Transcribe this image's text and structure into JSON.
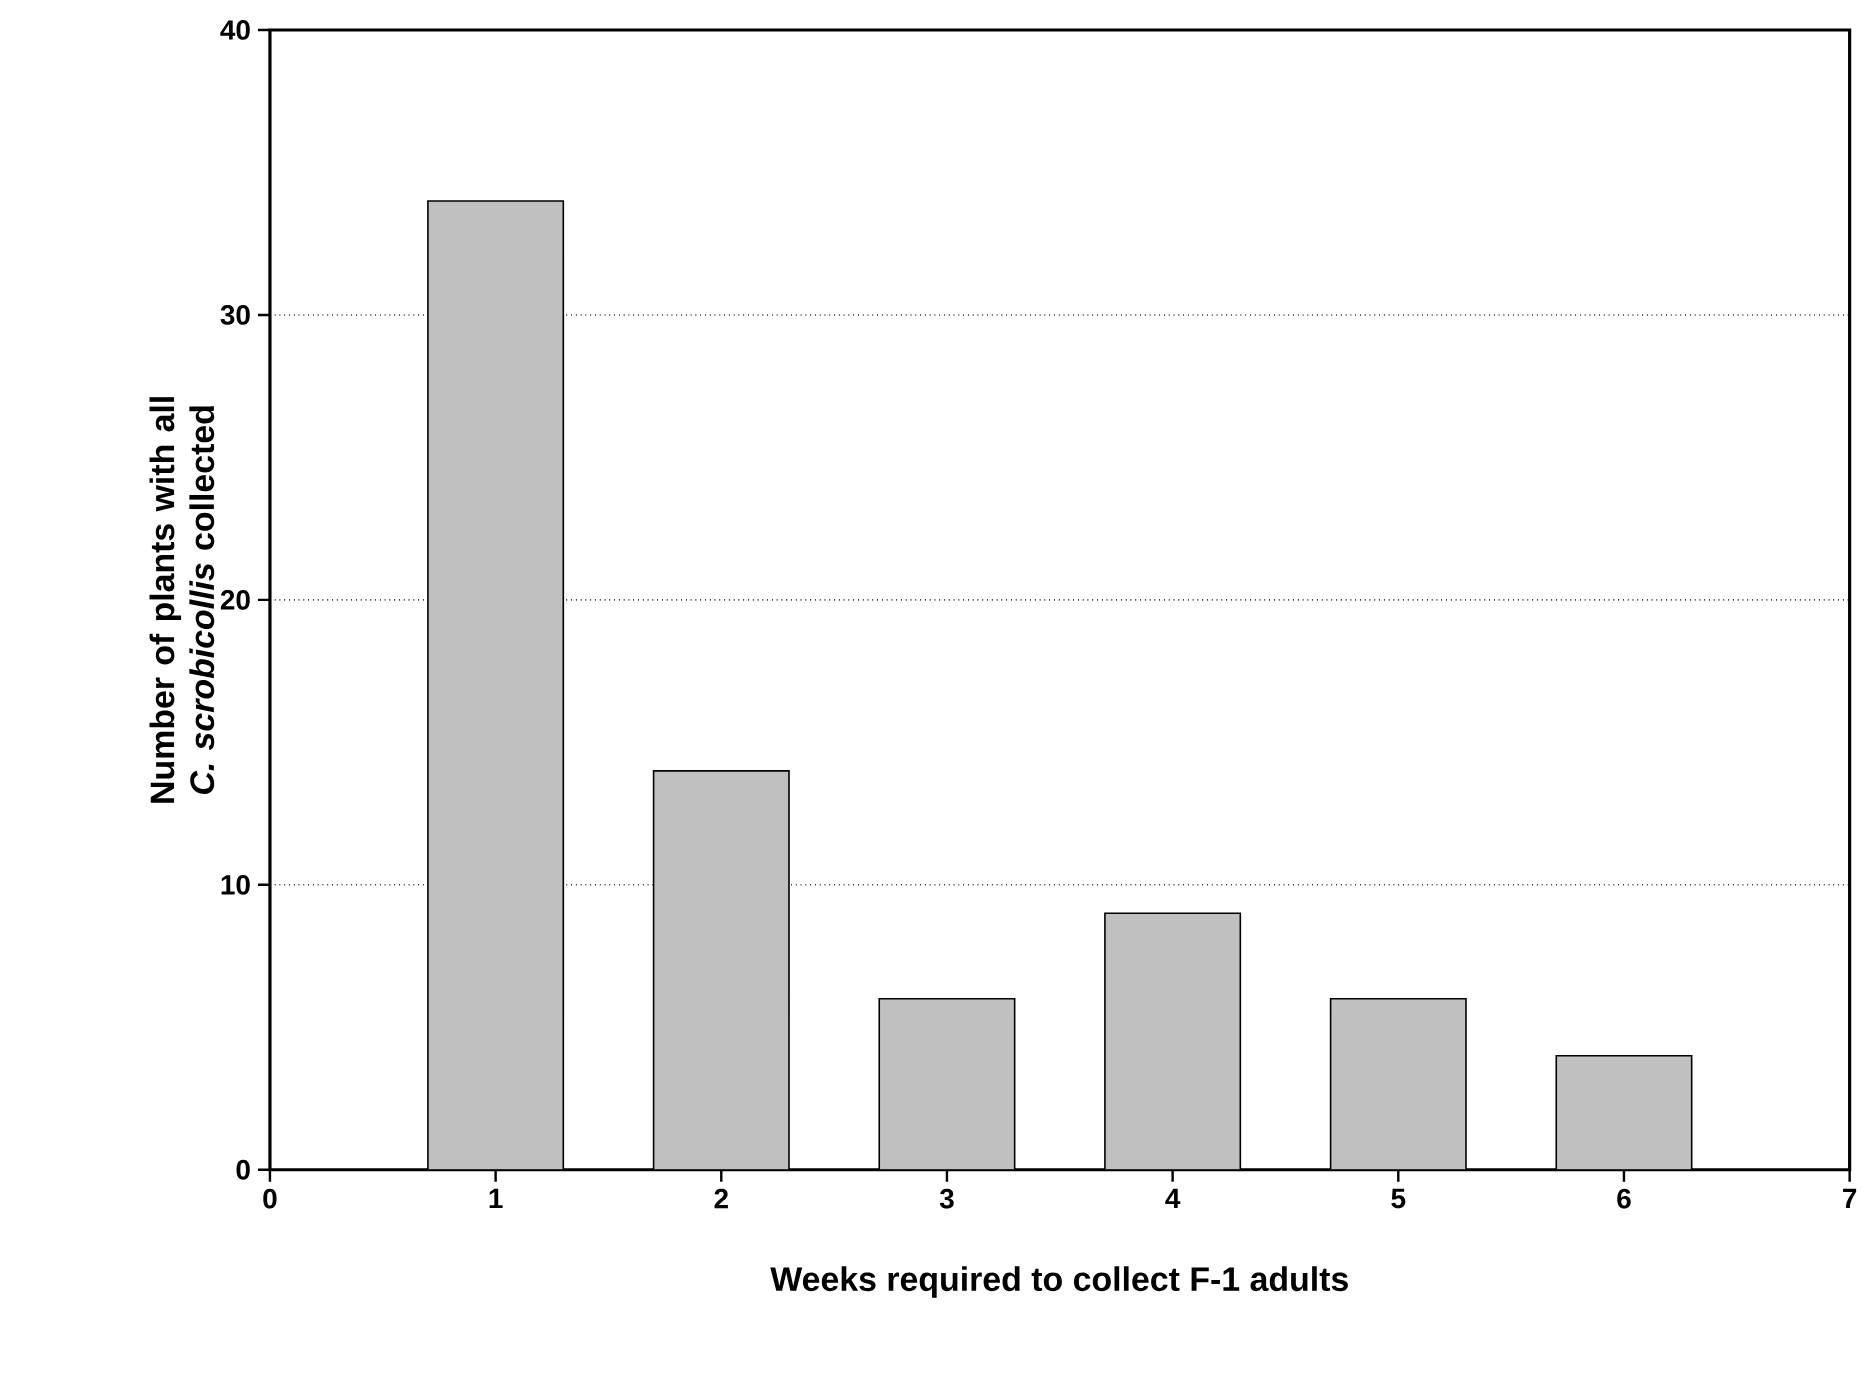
{
  "chart_data": {
    "type": "bar",
    "xlabel": "Weeks required to collect F-1 adults",
    "ylabel": "Number of plants with all *C. scrobicollis* collected",
    "x": [
      1,
      2,
      3,
      4,
      5,
      6
    ],
    "values": [
      34,
      14,
      6,
      9,
      6,
      4
    ],
    "color": "#c0c0c0",
    "xlim": [
      0,
      7
    ],
    "xticks": [
      0,
      1,
      2,
      3,
      4,
      5,
      6,
      7
    ],
    "ylim": [
      0,
      40
    ],
    "yticks": [
      0,
      10,
      20,
      30,
      40
    ],
    "grid": "y"
  }
}
